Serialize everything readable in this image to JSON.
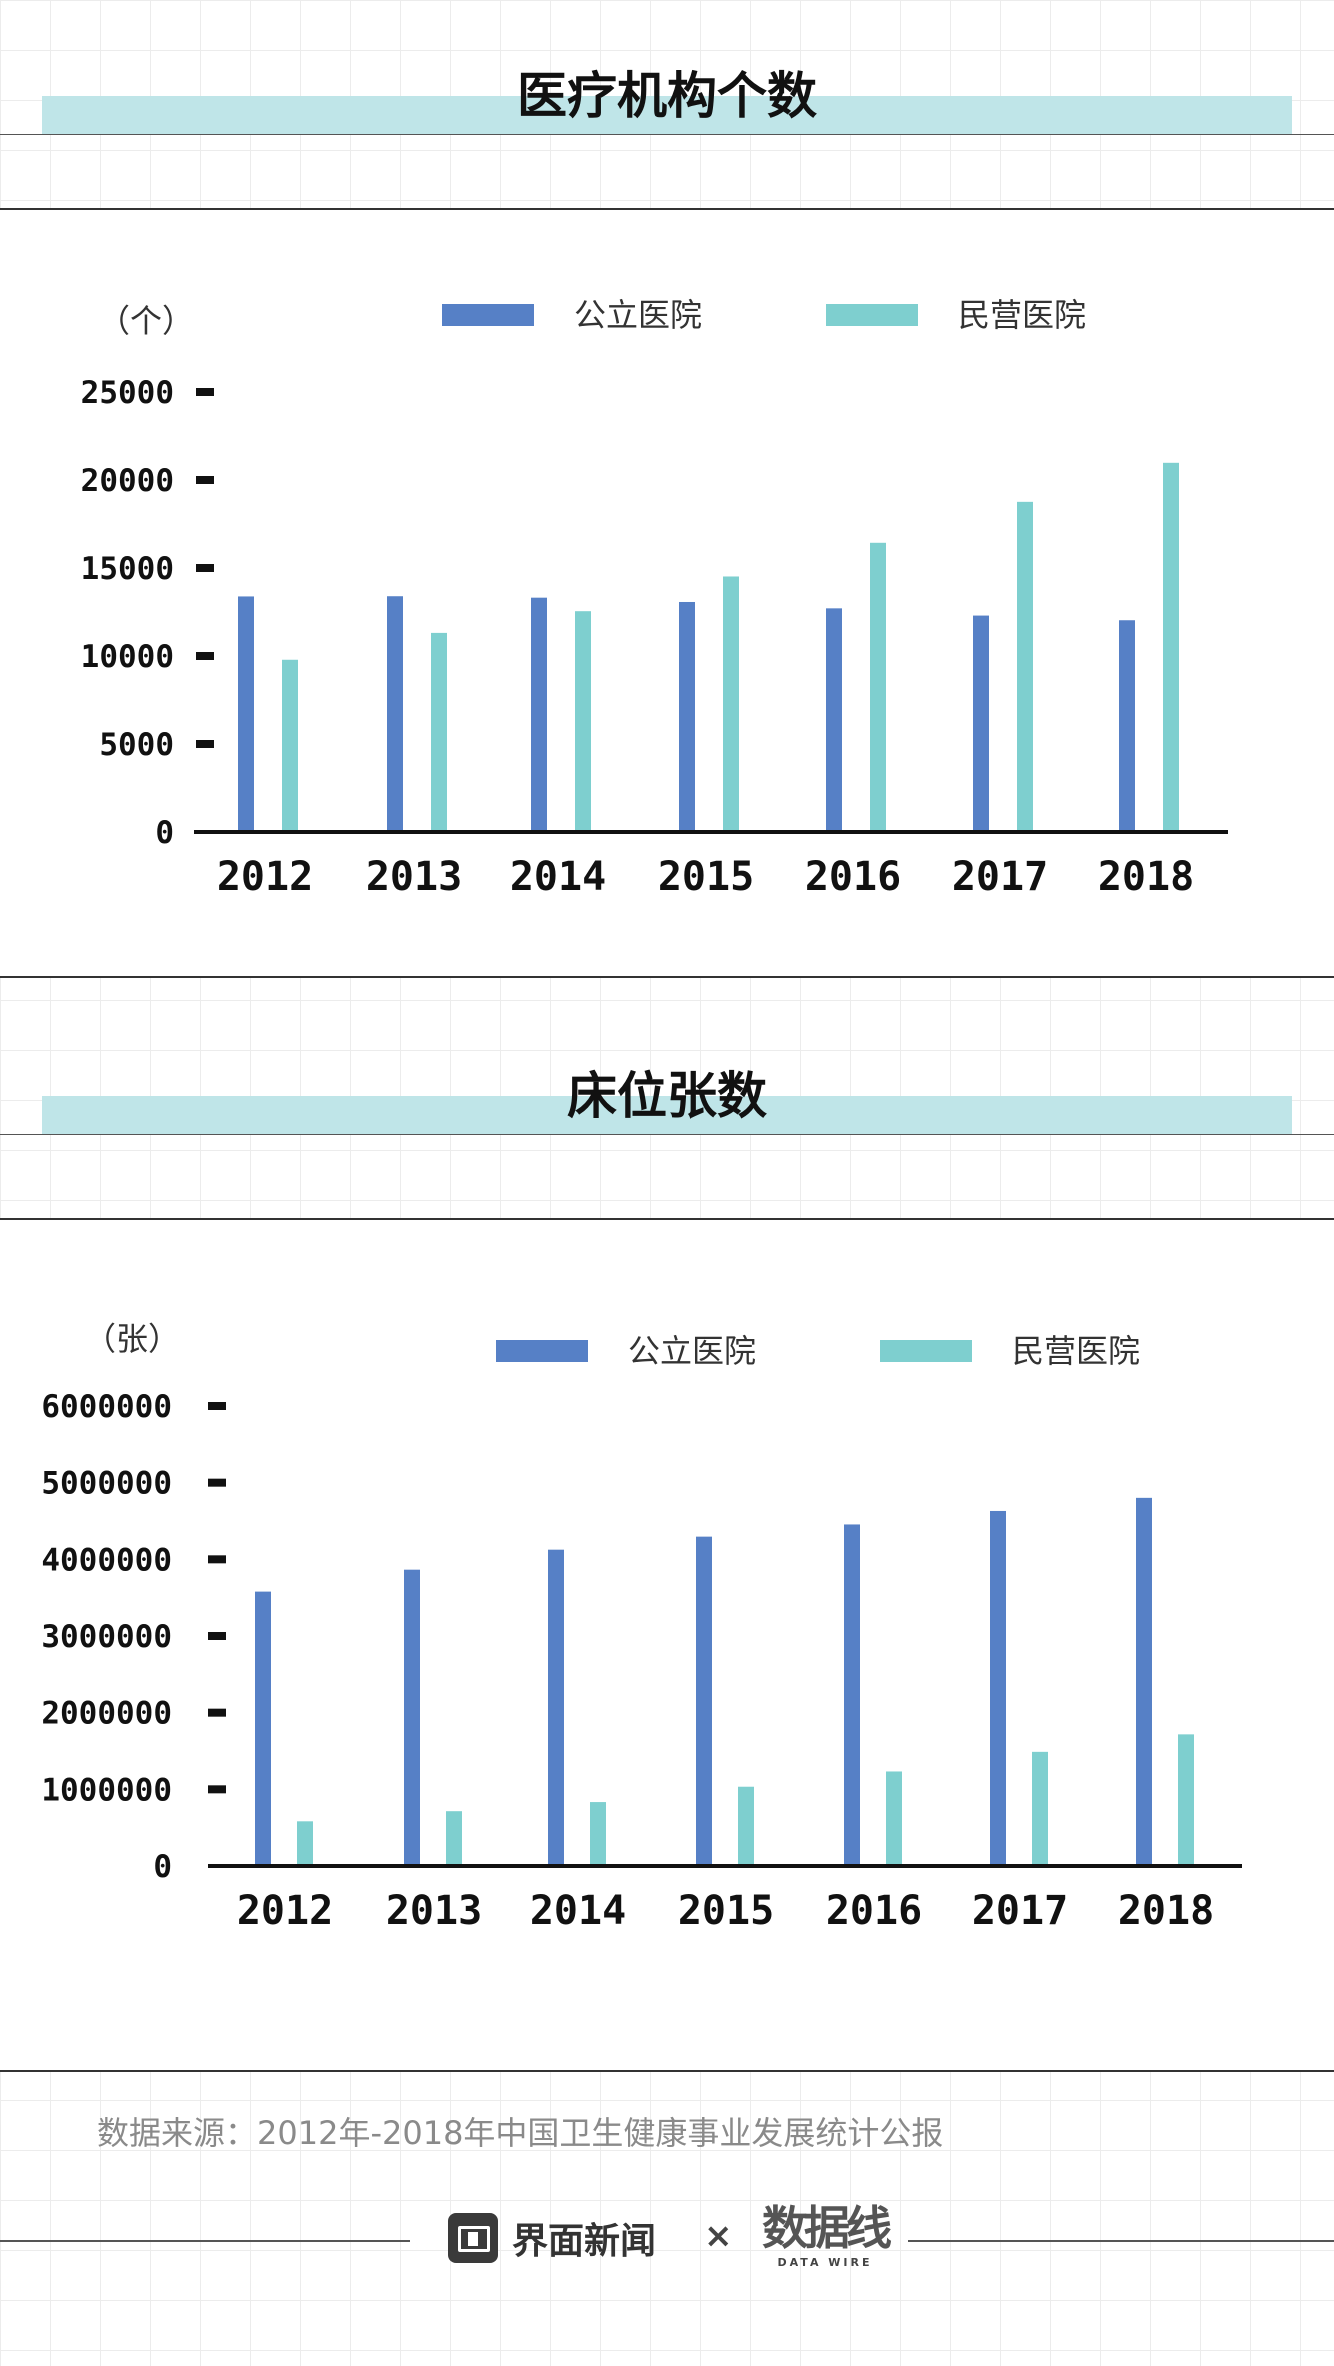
{
  "colors": {
    "public": "#5680c6",
    "private": "#7ecfcf",
    "title_band": "#bfe5e8"
  },
  "legend": {
    "public": "公立医院",
    "private": "民营医院"
  },
  "chart_data": [
    {
      "type": "bar",
      "title": "医疗机构个数",
      "unit": "（个）",
      "categories": [
        "2012",
        "2013",
        "2014",
        "2015",
        "2016",
        "2017",
        "2018"
      ],
      "series": [
        {
          "name": "公立医院",
          "values": [
            13384,
            13396,
            13314,
            13069,
            12708,
            12297,
            12032
          ]
        },
        {
          "name": "民营医院",
          "values": [
            9786,
            11313,
            12546,
            14518,
            16432,
            18759,
            20977
          ]
        }
      ],
      "ylim": [
        0,
        25000
      ],
      "yticks": [
        0,
        5000,
        10000,
        15000,
        20000,
        25000
      ],
      "ytick_labels": [
        "0",
        "5000",
        "10000",
        "15000",
        "20000",
        "25000"
      ],
      "legend_position": "top"
    },
    {
      "type": "bar",
      "title": "床位张数",
      "unit": "（张）",
      "categories": [
        "2012",
        "2013",
        "2014",
        "2015",
        "2016",
        "2017",
        "2018"
      ],
      "series": [
        {
          "name": "公立医院",
          "values": [
            3579000,
            3865000,
            4126000,
            4296000,
            4455000,
            4631000,
            4802000
          ]
        },
        {
          "name": "民营医院",
          "values": [
            583000,
            715000,
            834000,
            1034000,
            1233000,
            1489000,
            1717000
          ]
        }
      ],
      "ylim": [
        0,
        6000000
      ],
      "yticks": [
        0,
        1000000,
        2000000,
        3000000,
        4000000,
        5000000,
        6000000
      ],
      "ytick_labels": [
        "0",
        "1000000",
        "2000000",
        "3000000",
        "4000000",
        "5000000",
        "6000000"
      ],
      "legend_position": "top"
    }
  ],
  "footer": {
    "source": "数据来源：2012年-2018年中国卫生健康事业发展统计公报",
    "brand1": "界面新闻",
    "times": "×",
    "brand2": "数据线",
    "brand2_sub": "DATA WIRE"
  }
}
